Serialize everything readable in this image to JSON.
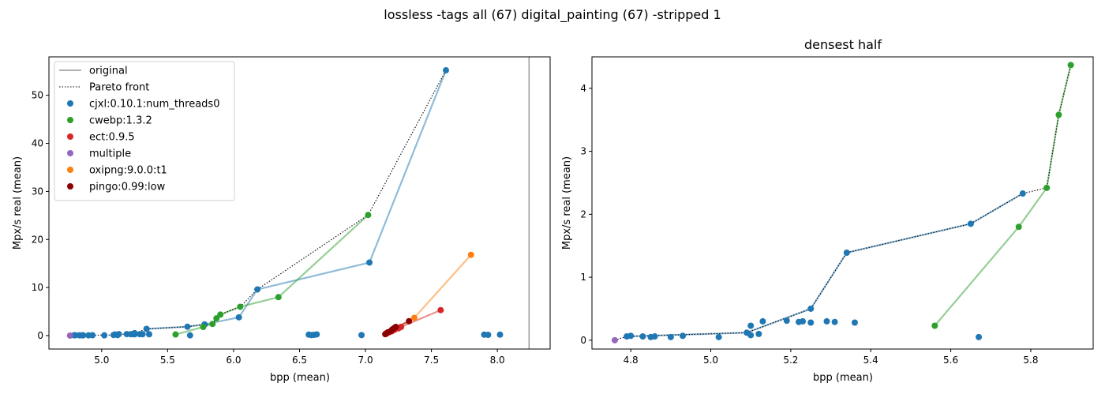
{
  "figure_title": "lossless -tags all (67) digital_painting (67) -stripped 1",
  "chart_data": [
    {
      "type": "scatter",
      "title": "",
      "xlabel": "bpp (mean)",
      "ylabel": "Mpx/s real (mean)",
      "xlim": [
        4.6,
        8.4
      ],
      "ylim": [
        -2.8,
        58
      ],
      "xticks": [
        "5.0",
        "5.5",
        "6.0",
        "6.5",
        "7.0",
        "7.5",
        "8.0"
      ],
      "yticks": [
        "0",
        "10",
        "20",
        "30",
        "40",
        "50"
      ],
      "grid": false,
      "legend": {
        "placement": "top-left",
        "entries": [
          {
            "label": "original",
            "kind": "vline",
            "color": "#808080"
          },
          {
            "label": "Pareto front",
            "kind": "dotted",
            "color": "#000000"
          },
          {
            "label": "cjxl:0.10.1:num_threads0",
            "kind": "marker",
            "color": "#1f77b4"
          },
          {
            "label": "cwebp:1.3.2",
            "kind": "marker",
            "color": "#2ca02c"
          },
          {
            "label": "ect:0.9.5",
            "kind": "marker",
            "color": "#d62728"
          },
          {
            "label": "multiple",
            "kind": "marker",
            "color": "#9467bd"
          },
          {
            "label": "oxipng:9.0.0:t1",
            "kind": "marker",
            "color": "#ff7f0e"
          },
          {
            "label": "pingo:0.99:low",
            "kind": "marker",
            "color": "#8b0000"
          }
        ]
      },
      "original_x": 8.24,
      "series": [
        {
          "name": "cjxl:0.10.1:num_threads0",
          "color": "#1f77b4",
          "line": [
            [
              5.34,
              1.39
            ],
            [
              5.65,
              1.85
            ],
            [
              5.78,
              2.33
            ],
            [
              6.04,
              3.8
            ],
            [
              6.18,
              9.6
            ],
            [
              7.03,
              15.2
            ],
            [
              7.61,
              55.2
            ]
          ],
          "points": [
            [
              4.79,
              0.06
            ],
            [
              4.8,
              0.07
            ],
            [
              4.83,
              0.06
            ],
            [
              4.85,
              0.05
            ],
            [
              4.86,
              0.06
            ],
            [
              4.9,
              0.05
            ],
            [
              4.93,
              0.07
            ],
            [
              5.02,
              0.05
            ],
            [
              5.09,
              0.12
            ],
            [
              5.1,
              0.23
            ],
            [
              5.12,
              0.1
            ],
            [
              5.13,
              0.3
            ],
            [
              5.19,
              0.31
            ],
            [
              5.22,
              0.29
            ],
            [
              5.23,
              0.3
            ],
            [
              5.25,
              0.28
            ],
            [
              5.29,
              0.3
            ],
            [
              5.31,
              0.29
            ],
            [
              5.36,
              0.28
            ],
            [
              5.67,
              0.05
            ],
            [
              5.25,
              0.5
            ],
            [
              5.34,
              1.39
            ],
            [
              5.65,
              1.85
            ],
            [
              5.78,
              2.33
            ],
            [
              6.04,
              3.8
            ],
            [
              6.18,
              9.6
            ],
            [
              7.03,
              15.2
            ],
            [
              7.61,
              55.2
            ],
            [
              6.57,
              0.2
            ],
            [
              6.59,
              0.1
            ],
            [
              6.61,
              0.15
            ],
            [
              6.63,
              0.25
            ],
            [
              6.97,
              0.1
            ],
            [
              7.9,
              0.2
            ],
            [
              7.93,
              0.15
            ],
            [
              8.02,
              0.2
            ]
          ]
        },
        {
          "name": "cwebp:1.3.2",
          "color": "#2ca02c",
          "line": [
            [
              5.56,
              0.23
            ],
            [
              5.77,
              1.8
            ],
            [
              5.84,
              2.42
            ],
            [
              5.87,
              3.58
            ],
            [
              5.9,
              4.37
            ],
            [
              6.05,
              6.0
            ],
            [
              6.34,
              8.0
            ],
            [
              7.02,
              25.1
            ]
          ],
          "points": [
            [
              5.56,
              0.23
            ],
            [
              5.77,
              1.8
            ],
            [
              5.84,
              2.42
            ],
            [
              5.87,
              3.58
            ],
            [
              5.9,
              4.37
            ],
            [
              6.05,
              6.0
            ],
            [
              6.34,
              8.0
            ],
            [
              7.02,
              25.1
            ]
          ]
        },
        {
          "name": "ect:0.9.5",
          "color": "#d62728",
          "line": [
            [
              7.16,
              0.4
            ],
            [
              7.2,
              0.9
            ],
            [
              7.27,
              1.8
            ],
            [
              7.57,
              5.3
            ]
          ],
          "points": [
            [
              7.16,
              0.4
            ],
            [
              7.18,
              0.7
            ],
            [
              7.2,
              0.9
            ],
            [
              7.22,
              1.2
            ],
            [
              7.25,
              1.5
            ],
            [
              7.27,
              1.8
            ],
            [
              7.57,
              5.3
            ]
          ]
        },
        {
          "name": "multiple",
          "color": "#9467bd",
          "line": [],
          "points": [
            [
              4.76,
              0.0
            ]
          ]
        },
        {
          "name": "oxipng:9.0.0:t1",
          "color": "#ff7f0e",
          "line": [
            [
              7.15,
              0.4
            ],
            [
              7.23,
              1.5
            ],
            [
              7.37,
              3.7
            ],
            [
              7.8,
              16.8
            ]
          ],
          "points": [
            [
              7.37,
              3.7
            ],
            [
              7.8,
              16.8
            ]
          ]
        },
        {
          "name": "pingo:0.99:low",
          "color": "#8b0000",
          "line": [
            [
              7.15,
              0.3
            ],
            [
              7.19,
              0.9
            ],
            [
              7.22,
              1.6
            ],
            [
              7.33,
              3.0
            ]
          ],
          "points": [
            [
              7.15,
              0.3
            ],
            [
              7.16,
              0.5
            ],
            [
              7.17,
              0.7
            ],
            [
              7.19,
              0.9
            ],
            [
              7.2,
              1.2
            ],
            [
              7.21,
              1.4
            ],
            [
              7.22,
              1.6
            ],
            [
              7.23,
              1.8
            ],
            [
              7.33,
              3.0
            ]
          ]
        }
      ],
      "pareto_front": [
        [
          4.76,
          0.0
        ],
        [
          4.79,
          0.06
        ],
        [
          5.09,
          0.12
        ],
        [
          5.25,
          0.5
        ],
        [
          5.34,
          1.39
        ],
        [
          5.65,
          1.85
        ],
        [
          5.78,
          2.33
        ],
        [
          5.84,
          2.42
        ],
        [
          5.87,
          3.58
        ],
        [
          5.9,
          4.37
        ],
        [
          6.05,
          6.0
        ],
        [
          6.18,
          9.6
        ],
        [
          7.02,
          25.1
        ],
        [
          7.61,
          55.2
        ]
      ]
    },
    {
      "type": "scatter",
      "title": "densest half",
      "xlabel": "bpp (mean)",
      "ylabel": "Mpx/s real (mean)",
      "xlim": [
        4.703,
        5.956
      ],
      "ylim": [
        -0.14,
        4.5
      ],
      "xticks": [
        "4.8",
        "5.0",
        "5.2",
        "5.4",
        "5.6",
        "5.8"
      ],
      "yticks": [
        "0",
        "1",
        "2",
        "3",
        "4"
      ],
      "grid": false,
      "series": [
        {
          "name": "cjxl:0.10.1:num_threads0",
          "color": "#1f77b4",
          "line": [
            [
              4.79,
              0.06
            ],
            [
              5.09,
              0.12
            ],
            [
              5.25,
              0.5
            ],
            [
              5.34,
              1.39
            ],
            [
              5.65,
              1.85
            ],
            [
              5.78,
              2.33
            ]
          ],
          "points": [
            [
              4.79,
              0.06
            ],
            [
              4.8,
              0.07
            ],
            [
              4.83,
              0.06
            ],
            [
              4.85,
              0.05
            ],
            [
              4.86,
              0.06
            ],
            [
              4.9,
              0.05
            ],
            [
              4.93,
              0.07
            ],
            [
              5.02,
              0.05
            ],
            [
              5.09,
              0.12
            ],
            [
              5.1,
              0.23
            ],
            [
              5.1,
              0.08
            ],
            [
              5.12,
              0.1
            ],
            [
              5.13,
              0.3
            ],
            [
              5.19,
              0.31
            ],
            [
              5.22,
              0.29
            ],
            [
              5.23,
              0.3
            ],
            [
              5.25,
              0.28
            ],
            [
              5.29,
              0.3
            ],
            [
              5.31,
              0.29
            ],
            [
              5.36,
              0.28
            ],
            [
              5.25,
              0.5
            ],
            [
              5.34,
              1.39
            ],
            [
              5.65,
              1.85
            ],
            [
              5.78,
              2.33
            ],
            [
              5.67,
              0.05
            ]
          ]
        },
        {
          "name": "cwebp:1.3.2",
          "color": "#2ca02c",
          "line": [
            [
              5.56,
              0.23
            ],
            [
              5.77,
              1.8
            ],
            [
              5.84,
              2.42
            ],
            [
              5.87,
              3.58
            ],
            [
              5.9,
              4.37
            ]
          ],
          "points": [
            [
              5.56,
              0.23
            ],
            [
              5.77,
              1.8
            ],
            [
              5.84,
              2.42
            ],
            [
              5.87,
              3.58
            ],
            [
              5.9,
              4.37
            ]
          ]
        },
        {
          "name": "multiple",
          "color": "#9467bd",
          "line": [],
          "points": [
            [
              4.76,
              0.0
            ]
          ]
        }
      ],
      "pareto_front": [
        [
          4.76,
          0.0
        ],
        [
          4.79,
          0.06
        ],
        [
          5.09,
          0.12
        ],
        [
          5.25,
          0.5
        ],
        [
          5.34,
          1.39
        ],
        [
          5.65,
          1.85
        ],
        [
          5.78,
          2.33
        ],
        [
          5.84,
          2.42
        ],
        [
          5.87,
          3.58
        ],
        [
          5.9,
          4.37
        ]
      ]
    }
  ]
}
